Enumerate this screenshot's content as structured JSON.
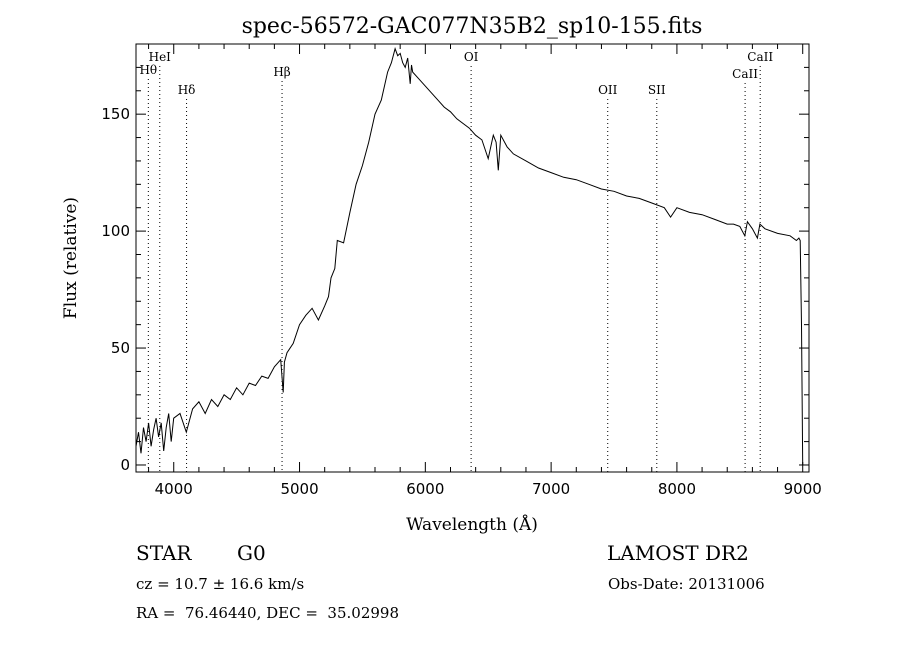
{
  "chart_data": {
    "type": "line",
    "title": "spec-56572-GAC077N35B2_sp10-155.fits",
    "xlabel": "Wavelength (Å)",
    "ylabel": "Flux (relative)",
    "xlim": [
      3700,
      9050
    ],
    "ylim": [
      -3,
      180
    ],
    "xticks": [
      4000,
      5000,
      6000,
      7000,
      8000,
      9000
    ],
    "yticks": [
      0,
      50,
      100,
      150
    ],
    "grid": false,
    "line_color": "#000000",
    "series": [
      {
        "x": [
          3700,
          3720,
          3740,
          3760,
          3780,
          3800,
          3820,
          3840,
          3860,
          3880,
          3900,
          3920,
          3940,
          3960,
          3980,
          4000,
          4050,
          4100,
          4150,
          4200,
          4250,
          4300,
          4350,
          4400,
          4450,
          4500,
          4550,
          4600,
          4650,
          4700,
          4750,
          4800,
          4850,
          4870,
          4880,
          4900,
          4950,
          5000,
          5050,
          5100,
          5150,
          5200,
          5230,
          5250,
          5280,
          5300,
          5350,
          5400,
          5450,
          5500,
          5550,
          5600,
          5650,
          5700,
          5730,
          5760,
          5780,
          5800,
          5820,
          5840,
          5860,
          5880,
          5890,
          5900,
          5950,
          6000,
          6050,
          6100,
          6150,
          6200,
          6250,
          6300,
          6350,
          6400,
          6450,
          6500,
          6540,
          6563,
          6580,
          6600,
          6650,
          6700,
          6800,
          6900,
          7000,
          7100,
          7200,
          7300,
          7400,
          7500,
          7600,
          7700,
          7800,
          7900,
          7950,
          8000,
          8100,
          8200,
          8300,
          8400,
          8450,
          8500,
          8540,
          8560,
          8600,
          8640,
          8660,
          8700,
          8800,
          8900,
          8950,
          8970,
          8980,
          8990,
          9000
        ],
        "y": [
          8,
          14,
          5,
          16,
          10,
          18,
          8,
          15,
          20,
          12,
          18,
          6,
          16,
          22,
          10,
          20,
          22,
          14,
          24,
          27,
          22,
          28,
          25,
          30,
          28,
          33,
          30,
          35,
          34,
          38,
          37,
          42,
          45,
          31,
          44,
          48,
          52,
          60,
          64,
          67,
          62,
          68,
          72,
          80,
          84,
          96,
          95,
          108,
          120,
          128,
          138,
          150,
          156,
          168,
          172,
          178,
          175,
          176,
          172,
          170,
          174,
          163,
          171,
          168,
          165,
          162,
          159,
          156,
          153,
          151,
          148,
          146,
          144,
          141,
          139,
          131,
          141,
          138,
          126,
          141,
          136,
          133,
          130,
          127,
          125,
          123,
          122,
          120,
          118,
          117,
          115,
          114,
          112,
          110,
          106,
          110,
          108,
          107,
          105,
          103,
          103,
          102,
          98,
          104,
          101,
          97,
          103,
          101,
          99,
          98,
          96,
          97,
          96,
          60,
          0
        ]
      }
    ],
    "lines": [
      {
        "label": "Hθ",
        "x": 3798
      },
      {
        "label": "HeI",
        "x": 3889
      },
      {
        "label": "Hδ",
        "x": 4102
      },
      {
        "label": "Hβ",
        "x": 4861
      },
      {
        "label": "OI",
        "x": 6364
      },
      {
        "label": "OII",
        "x": 7450
      },
      {
        "label": "SII",
        "x": 7840
      },
      {
        "label": "CaII",
        "x": 8542
      },
      {
        "label": "CaII",
        "x": 8662
      }
    ]
  },
  "info": {
    "object_type": "STAR",
    "subclass": "G0",
    "survey": "LAMOST DR2",
    "cz": "cz = 10.7 ± 16.6 km/s",
    "obs_date": "Obs-Date: 20131006",
    "coords": "RA =  76.46440, DEC =  35.02998"
  }
}
